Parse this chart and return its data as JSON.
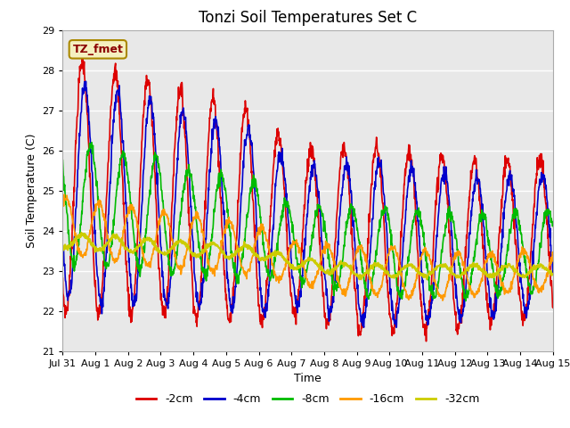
{
  "title": "Tonzi Soil Temperatures Set C",
  "ylabel": "Soil Temperature (C)",
  "xlabel": "Time",
  "annotation": "TZ_fmet",
  "ylim": [
    21.0,
    29.0
  ],
  "yticks": [
    21.0,
    22.0,
    23.0,
    24.0,
    25.0,
    26.0,
    27.0,
    28.0,
    29.0
  ],
  "xtick_labels": [
    "Jul 31",
    "Aug 1",
    "Aug 2",
    "Aug 3",
    "Aug 4",
    "Aug 5",
    "Aug 6",
    "Aug 7",
    "Aug 8",
    "Aug 9",
    "Aug 10",
    "Aug 11",
    "Aug 12",
    "Aug 13",
    "Aug 14",
    "Aug 15"
  ],
  "line_colors": [
    "#dd0000",
    "#0000cc",
    "#00bb00",
    "#ff9900",
    "#cccc00"
  ],
  "line_labels": [
    "-2cm",
    "-4cm",
    "-8cm",
    "-16cm",
    "-32cm"
  ],
  "line_widths": [
    1.2,
    1.2,
    1.2,
    1.2,
    1.5
  ],
  "bg_color": "#e8e8e8",
  "fig_bg_color": "#ffffff",
  "grid_color": "#ffffff",
  "n_points": 1440,
  "amplitudes_2cm": [
    3.2,
    3.1,
    3.0,
    2.9,
    2.8,
    2.7,
    2.7,
    2.0,
    2.2,
    2.3,
    2.3,
    2.2,
    2.1,
    2.0,
    2.0
  ],
  "amplitudes_4cm": [
    2.7,
    2.7,
    2.6,
    2.5,
    2.4,
    2.3,
    2.3,
    1.7,
    1.8,
    2.0,
    2.0,
    1.9,
    1.8,
    1.7,
    1.7
  ],
  "amplitudes_8cm": [
    1.5,
    1.5,
    1.4,
    1.4,
    1.3,
    1.3,
    1.2,
    0.9,
    1.0,
    1.1,
    1.1,
    1.1,
    1.0,
    1.0,
    1.0
  ],
  "amplitudes_16cm": [
    0.7,
    0.7,
    0.7,
    0.7,
    0.7,
    0.65,
    0.6,
    0.5,
    0.55,
    0.6,
    0.6,
    0.6,
    0.55,
    0.5,
    0.5
  ],
  "amplitudes_32cm": [
    0.18,
    0.18,
    0.17,
    0.17,
    0.16,
    0.16,
    0.15,
    0.13,
    0.14,
    0.15,
    0.15,
    0.14,
    0.14,
    0.13,
    0.13
  ],
  "mean_2cm": [
    25.2,
    25.0,
    24.9,
    24.8,
    24.6,
    24.5,
    24.3,
    24.0,
    23.9,
    23.8,
    23.8,
    23.7,
    23.7,
    23.7,
    23.8
  ],
  "mean_4cm": [
    25.0,
    24.9,
    24.8,
    24.7,
    24.5,
    24.4,
    24.2,
    23.9,
    23.8,
    23.7,
    23.7,
    23.6,
    23.6,
    23.6,
    23.7
  ],
  "mean_8cm": [
    24.7,
    24.6,
    24.5,
    24.4,
    24.2,
    24.1,
    24.0,
    23.7,
    23.6,
    23.5,
    23.5,
    23.4,
    23.4,
    23.4,
    23.5
  ],
  "mean_16cm": [
    24.1,
    24.0,
    23.9,
    23.8,
    23.7,
    23.6,
    23.5,
    23.2,
    23.1,
    23.0,
    23.0,
    22.9,
    22.9,
    22.9,
    23.0
  ],
  "mean_32cm": [
    23.75,
    23.7,
    23.65,
    23.6,
    23.55,
    23.5,
    23.45,
    23.2,
    23.1,
    23.0,
    23.0,
    23.0,
    23.0,
    23.0,
    23.0
  ],
  "phase_2cm": 0.0,
  "phase_4cm": 0.08,
  "phase_8cm": 0.25,
  "phase_16cm": 0.5,
  "phase_32cm": 1.0
}
